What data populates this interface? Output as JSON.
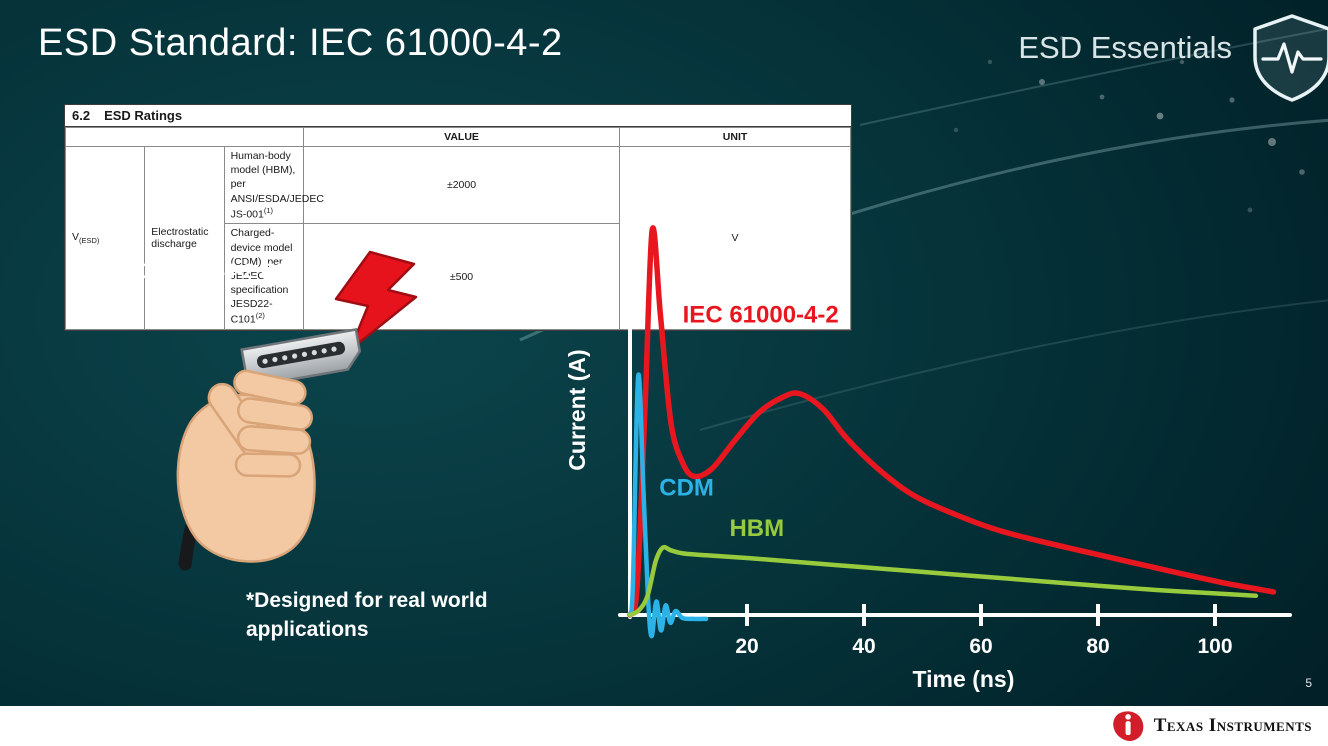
{
  "slide": {
    "title": "ESD Standard: IEC 61000-4-2",
    "series_brand": "ESD Essentials",
    "iec_label": "IEC 61000-4-2 ESD",
    "footnote": "*Designed for real world applications",
    "page_number": "5"
  },
  "ratings_table": {
    "section_number": "6.2",
    "section_title": "ESD Ratings",
    "value_header": "VALUE",
    "unit_header": "UNIT",
    "symbol_base": "V",
    "symbol_sub": "(ESD)",
    "parameter": "Electrostatic discharge",
    "rows": [
      {
        "condition": "Human-body model (HBM), per ANSI/ESDA/JEDEC JS-001",
        "ref": "(1)",
        "value": "±2000"
      },
      {
        "condition": "Charged-device model (CDM), per JEDEC specification JESD22-C101",
        "ref": "(2)",
        "value": "±500"
      }
    ],
    "unit": "V"
  },
  "chart_data": {
    "type": "line",
    "title": "",
    "xlabel": "Time (ns)",
    "ylabel": "Current (A)",
    "x_ticks": [
      20,
      40,
      60,
      80,
      100
    ],
    "xlim": [
      0,
      112
    ],
    "ylim_normalized": [
      -0.1,
      1.05
    ],
    "grid": false,
    "legend_position": "inline-labels",
    "series": [
      {
        "name": "IEC 61000-4-2",
        "color": "#e8171f",
        "label_at": [
          9,
          0.76
        ],
        "points": [
          [
            0,
            0
          ],
          [
            1.2,
            0.07
          ],
          [
            2.6,
            0.55
          ],
          [
            3.8,
            1.0
          ],
          [
            5.2,
            0.78
          ],
          [
            7,
            0.5
          ],
          [
            9,
            0.395
          ],
          [
            11,
            0.36
          ],
          [
            14,
            0.38
          ],
          [
            18,
            0.455
          ],
          [
            22,
            0.525
          ],
          [
            26,
            0.565
          ],
          [
            29,
            0.575
          ],
          [
            33,
            0.535
          ],
          [
            37,
            0.46
          ],
          [
            42,
            0.385
          ],
          [
            48,
            0.315
          ],
          [
            55,
            0.265
          ],
          [
            63,
            0.22
          ],
          [
            72,
            0.185
          ],
          [
            82,
            0.15
          ],
          [
            92,
            0.115
          ],
          [
            101,
            0.085
          ],
          [
            110,
            0.06
          ]
        ]
      },
      {
        "name": "CDM",
        "color": "#2bb3e8",
        "label_at": [
          5,
          0.31
        ],
        "points": [
          [
            0,
            0
          ],
          [
            0.5,
            0.08
          ],
          [
            1.4,
            0.62
          ],
          [
            2.3,
            0.32
          ],
          [
            3.1,
            0.04
          ],
          [
            3.7,
            -0.055
          ],
          [
            4.5,
            0.035
          ],
          [
            5.3,
            -0.04
          ],
          [
            6.1,
            0.025
          ],
          [
            6.9,
            -0.02
          ],
          [
            7.8,
            0.01
          ],
          [
            9,
            -0.008
          ],
          [
            11,
            -0.01
          ],
          [
            13,
            -0.01
          ]
        ]
      },
      {
        "name": "HBM",
        "color": "#97ca3d",
        "label_at": [
          17,
          0.205
        ],
        "points": [
          [
            0,
            0
          ],
          [
            1.5,
            0.012
          ],
          [
            3,
            0.05
          ],
          [
            4.4,
            0.14
          ],
          [
            5.6,
            0.175
          ],
          [
            7,
            0.168
          ],
          [
            9,
            0.16
          ],
          [
            13,
            0.155
          ],
          [
            20,
            0.148
          ],
          [
            30,
            0.136
          ],
          [
            40,
            0.124
          ],
          [
            50,
            0.112
          ],
          [
            60,
            0.1
          ],
          [
            70,
            0.088
          ],
          [
            80,
            0.076
          ],
          [
            90,
            0.065
          ],
          [
            100,
            0.056
          ],
          [
            107,
            0.05
          ]
        ]
      }
    ]
  },
  "footer": {
    "brand": "Texas Instruments"
  }
}
